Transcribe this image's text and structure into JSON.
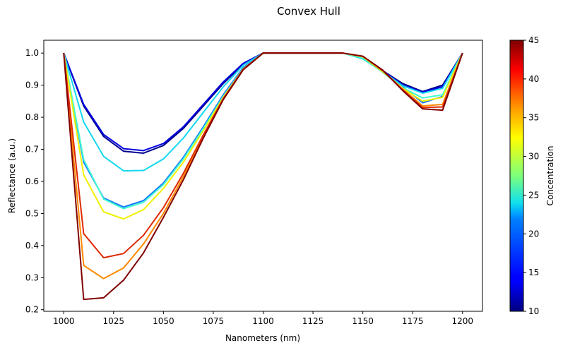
{
  "chart_data": {
    "type": "line",
    "title": "Convex Hull",
    "xlabel": "Nanometers (nm)",
    "ylabel": "Reflectance (a.u.)",
    "xlim": [
      990,
      1210
    ],
    "ylim": [
      0.195,
      1.04
    ],
    "xticks": [
      1000,
      1025,
      1050,
      1075,
      1100,
      1125,
      1150,
      1175,
      1200
    ],
    "yticks": [
      0.2,
      0.3,
      0.4,
      0.5,
      0.6,
      0.7,
      0.8,
      0.9,
      1.0
    ],
    "ytick_labels": [
      "0.2",
      "0.3",
      "0.4",
      "0.5",
      "0.6",
      "0.7",
      "0.8",
      "0.9",
      "1.0"
    ],
    "grid": false,
    "colorbar": {
      "label": "Concentration",
      "min": 10,
      "max": 45,
      "ticks": [
        10,
        15,
        20,
        25,
        30,
        35,
        40,
        45
      ],
      "colormap": "jet"
    },
    "x": [
      1000,
      1010,
      1020,
      1030,
      1040,
      1050,
      1060,
      1070,
      1080,
      1090,
      1100,
      1110,
      1120,
      1130,
      1140,
      1150,
      1160,
      1170,
      1180,
      1190,
      1200
    ],
    "series": [
      {
        "concentration": 10,
        "color": "#00008f",
        "values": [
          1.0,
          0.835,
          0.74,
          0.694,
          0.688,
          0.712,
          0.765,
          0.835,
          0.905,
          0.965,
          1.0,
          1.0,
          1.0,
          1.0,
          1.0,
          0.985,
          0.945,
          0.905,
          0.88,
          0.9,
          1.0
        ]
      },
      {
        "concentration": 12,
        "color": "#0000e0",
        "values": [
          1.0,
          0.84,
          0.746,
          0.702,
          0.696,
          0.718,
          0.77,
          0.84,
          0.91,
          0.968,
          1.0,
          1.0,
          1.0,
          1.0,
          1.0,
          0.985,
          0.945,
          0.9,
          0.878,
          0.895,
          1.0
        ]
      },
      {
        "concentration": 17,
        "color": "#0f74ff",
        "values": [
          1.0,
          0.66,
          0.548,
          0.52,
          0.54,
          0.595,
          0.675,
          0.77,
          0.87,
          0.955,
          1.0,
          1.0,
          1.0,
          1.0,
          1.0,
          0.985,
          0.94,
          0.895,
          0.845,
          0.865,
          1.0
        ]
      },
      {
        "concentration": 21,
        "color": "#13d8f0",
        "values": [
          1.0,
          0.785,
          0.678,
          0.633,
          0.634,
          0.67,
          0.735,
          0.815,
          0.895,
          0.962,
          1.0,
          1.0,
          1.0,
          1.0,
          1.0,
          0.982,
          0.942,
          0.898,
          0.875,
          0.89,
          1.0
        ]
      },
      {
        "concentration": 23,
        "color": "#3fffd0",
        "values": [
          1.0,
          0.668,
          0.545,
          0.515,
          0.535,
          0.59,
          0.67,
          0.765,
          0.865,
          0.952,
          1.0,
          1.0,
          1.0,
          1.0,
          1.0,
          0.985,
          0.94,
          0.892,
          0.86,
          0.87,
          1.0
        ]
      },
      {
        "concentration": 32,
        "color": "#f0f000",
        "values": [
          1.0,
          0.62,
          0.505,
          0.483,
          0.512,
          0.578,
          0.66,
          0.758,
          0.862,
          0.95,
          1.0,
          1.0,
          1.0,
          1.0,
          1.0,
          0.988,
          0.942,
          0.89,
          0.85,
          0.862,
          1.0
        ]
      },
      {
        "concentration": 37,
        "color": "#ff8800",
        "values": [
          1.0,
          0.338,
          0.297,
          0.33,
          0.405,
          0.5,
          0.615,
          0.74,
          0.855,
          0.948,
          1.0,
          1.0,
          1.0,
          1.0,
          1.0,
          0.99,
          0.945,
          0.888,
          0.835,
          0.84,
          1.0
        ]
      },
      {
        "concentration": 41,
        "color": "#e02800",
        "values": [
          1.0,
          0.437,
          0.362,
          0.375,
          0.432,
          0.518,
          0.625,
          0.745,
          0.858,
          0.95,
          1.0,
          1.0,
          1.0,
          1.0,
          1.0,
          0.99,
          0.945,
          0.885,
          0.83,
          0.832,
          1.0
        ]
      },
      {
        "concentration": 45,
        "color": "#800000",
        "values": [
          1.0,
          0.232,
          0.237,
          0.292,
          0.377,
          0.488,
          0.605,
          0.735,
          0.855,
          0.948,
          1.0,
          1.0,
          1.0,
          1.0,
          1.0,
          0.99,
          0.947,
          0.883,
          0.826,
          0.822,
          1.0
        ]
      }
    ]
  }
}
